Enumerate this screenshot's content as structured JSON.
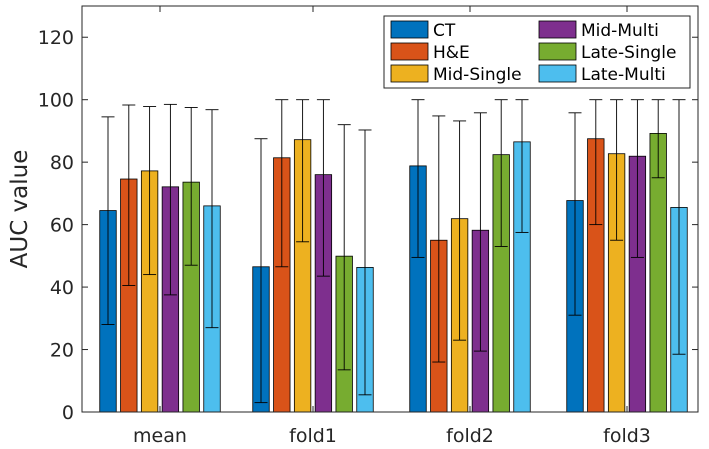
{
  "chart_data": {
    "type": "bar",
    "title": "",
    "xlabel": "",
    "ylabel": "AUC value",
    "ylim": [
      0,
      130
    ],
    "yticks": [
      0,
      20,
      40,
      60,
      80,
      100,
      120
    ],
    "grid": false,
    "legend_position": "top-right",
    "categories": [
      "mean",
      "fold1",
      "fold2",
      "fold3"
    ],
    "series": [
      {
        "name": "CT",
        "color": "#0072BD",
        "values": [
          64.5,
          46.5,
          78.8,
          67.7
        ],
        "error_low": [
          28,
          3,
          49.5,
          31
        ],
        "error_high": [
          94.5,
          87.5,
          100,
          95.8
        ]
      },
      {
        "name": "H&E",
        "color": "#D95319",
        "values": [
          74.6,
          81.4,
          55.0,
          87.5
        ],
        "error_low": [
          40.5,
          46.5,
          16,
          60
        ],
        "error_high": [
          98.3,
          100,
          94.8,
          100
        ]
      },
      {
        "name": "Mid-Single",
        "color": "#EDB120",
        "values": [
          77.2,
          87.2,
          61.9,
          82.7
        ],
        "error_low": [
          44,
          54.5,
          23,
          55
        ],
        "error_high": [
          97.8,
          100,
          93.2,
          100
        ]
      },
      {
        "name": "Mid-Multi",
        "color": "#7E2F8E",
        "values": [
          72.1,
          76.0,
          58.2,
          81.9
        ],
        "error_low": [
          37.5,
          43.5,
          19.5,
          49.5
        ],
        "error_high": [
          98.5,
          100,
          95.8,
          100
        ]
      },
      {
        "name": "Late-Single",
        "color": "#77AC30",
        "values": [
          73.6,
          49.9,
          82.4,
          89.2
        ],
        "error_low": [
          47,
          13.5,
          53,
          75
        ],
        "error_high": [
          97.5,
          92.0,
          100,
          100
        ]
      },
      {
        "name": "Late-Multi",
        "color": "#4DBEEE",
        "values": [
          66.0,
          46.3,
          86.5,
          65.5
        ],
        "error_low": [
          27,
          5.5,
          57.5,
          18.5
        ],
        "error_high": [
          96.8,
          90.3,
          100,
          100
        ]
      }
    ]
  }
}
